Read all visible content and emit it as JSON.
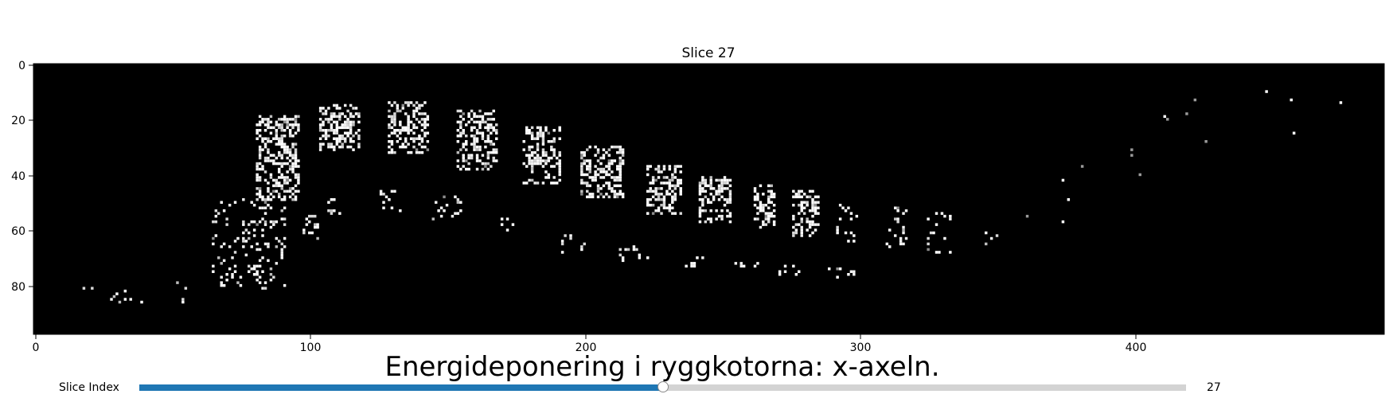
{
  "plot": {
    "title": "Slice 27",
    "suptitle": "Energideponering i ryggkotorna: x-axeln.",
    "x_ticks": [
      "0",
      "100",
      "200",
      "300",
      "400"
    ],
    "y_ticks": [
      "0",
      "20",
      "40",
      "60",
      "80"
    ]
  },
  "chart_data": {
    "type": "heatmap",
    "title": "Slice 27",
    "colormap": "gray",
    "xlim": [
      0,
      490
    ],
    "ylim": [
      98,
      0
    ],
    "x_ticks": [
      0,
      100,
      200,
      300,
      400
    ],
    "y_ticks": [
      0,
      20,
      40,
      60,
      80
    ],
    "upper_clusters": [
      {
        "x": [
          80,
          95
        ],
        "y": [
          18,
          48
        ]
      },
      {
        "x": [
          103,
          117
        ],
        "y": [
          14,
          30
        ]
      },
      {
        "x": [
          128,
          142
        ],
        "y": [
          13,
          31
        ]
      },
      {
        "x": [
          153,
          167
        ],
        "y": [
          16,
          37
        ]
      },
      {
        "x": [
          177,
          190
        ],
        "y": [
          22,
          42
        ]
      },
      {
        "x": [
          198,
          213
        ],
        "y": [
          29,
          47
        ]
      },
      {
        "x": [
          222,
          234
        ],
        "y": [
          36,
          53
        ]
      },
      {
        "x": [
          241,
          252
        ],
        "y": [
          40,
          56
        ]
      },
      {
        "x": [
          261,
          268
        ],
        "y": [
          43,
          58
        ]
      },
      {
        "x": [
          275,
          284
        ],
        "y": [
          45,
          61
        ]
      }
    ],
    "lower_clusters": [
      {
        "x": [
          64,
          90
        ],
        "y": [
          48,
          80
        ]
      },
      {
        "x": [
          96,
          102
        ],
        "y": [
          54,
          62
        ]
      },
      {
        "x": [
          106,
          110
        ],
        "y": [
          48,
          53
        ]
      },
      {
        "x": [
          122,
          132
        ],
        "y": [
          45,
          52
        ]
      },
      {
        "x": [
          144,
          155
        ],
        "y": [
          47,
          55
        ]
      },
      {
        "x": [
          169,
          177
        ],
        "y": [
          54,
          59
        ]
      },
      {
        "x": [
          191,
          200
        ],
        "y": [
          60,
          67
        ]
      },
      {
        "x": [
          212,
          222
        ],
        "y": [
          64,
          70
        ]
      },
      {
        "x": [
          236,
          242
        ],
        "y": [
          69,
          72
        ]
      },
      {
        "x": [
          254,
          262
        ],
        "y": [
          71,
          73
        ]
      },
      {
        "x": [
          270,
          280
        ],
        "y": [
          72,
          75
        ]
      },
      {
        "x": [
          288,
          298
        ],
        "y": [
          73,
          76
        ]
      },
      {
        "x": [
          291,
          298
        ],
        "y": [
          50,
          63
        ]
      },
      {
        "x": [
          309,
          316
        ],
        "y": [
          51,
          65
        ]
      },
      {
        "x": [
          324,
          332
        ],
        "y": [
          53,
          68
        ]
      },
      {
        "x": [
          343,
          350
        ],
        "y": [
          57,
          64
        ]
      },
      {
        "x": [
          14,
          20
        ],
        "y": [
          77,
          80
        ]
      },
      {
        "x": [
          27,
          38
        ],
        "y": [
          80,
          85
        ]
      },
      {
        "x": [
          50,
          56
        ],
        "y": [
          78,
          85
        ]
      }
    ],
    "sparse_points": [
      [
        360,
        54
      ],
      [
        373,
        41
      ],
      [
        373,
        56
      ],
      [
        375,
        48
      ],
      [
        380,
        36
      ],
      [
        398,
        30
      ],
      [
        398,
        32
      ],
      [
        401,
        39
      ],
      [
        410,
        18
      ],
      [
        411,
        19
      ],
      [
        418,
        17
      ],
      [
        421,
        12
      ],
      [
        425,
        27
      ],
      [
        447,
        9
      ],
      [
        456,
        12
      ],
      [
        457,
        24
      ],
      [
        474,
        13
      ]
    ]
  },
  "slider": {
    "label": "Slice Index",
    "value": 27,
    "value_text": "27",
    "min": 0,
    "max": 54,
    "fill_color": "#1f77b4",
    "track_color": "#d3d3d3"
  }
}
